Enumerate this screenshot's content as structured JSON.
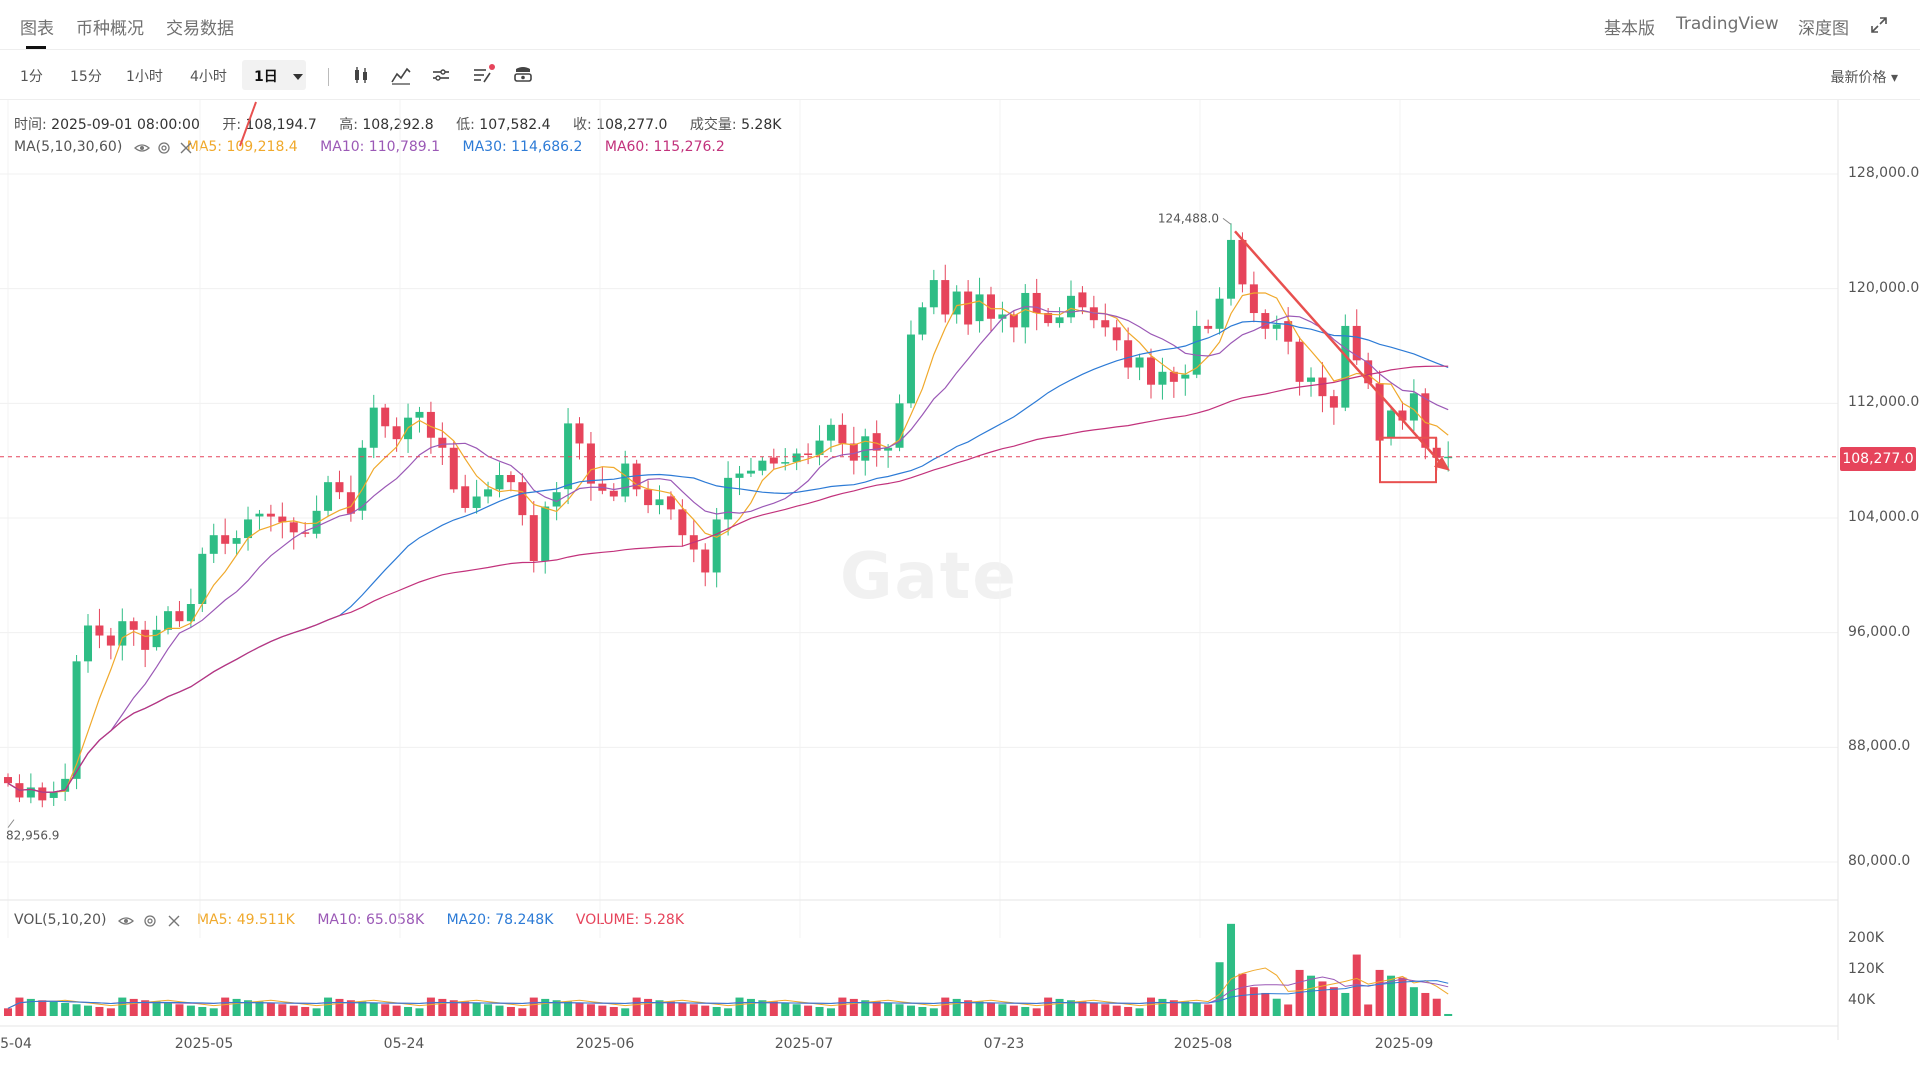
{
  "tabs": [
    {
      "label": "图表",
      "active": true
    },
    {
      "label": "币种概况",
      "active": false
    },
    {
      "label": "交易数据",
      "active": false
    }
  ],
  "right_tabs": [
    {
      "label": "基本版",
      "active": true
    },
    {
      "label": "TradingView",
      "active": false
    },
    {
      "label": "深度图",
      "active": false
    }
  ],
  "intervals": [
    "1分",
    "15分",
    "1小时",
    "4小时",
    "1日"
  ],
  "active_interval": "1日",
  "price_type": "最新价格",
  "ohlc": {
    "time_label": "时间:",
    "time": "2025-09-01 08:00:00",
    "open_label": "开:",
    "open": "108,194.7",
    "high_label": "高:",
    "high": "108,292.8",
    "low_label": "低:",
    "low": "107,582.4",
    "close_label": "收:",
    "close": "108,277.0",
    "volume_label": "成交量:",
    "volume": "5.28K"
  },
  "ma": {
    "label": "MA(5,10,30,60)",
    "ma5": "MA5: 109,218.4",
    "ma10": "MA10: 110,789.1",
    "ma30": "MA30: 114,686.2",
    "ma60": "MA60: 115,276.2"
  },
  "vol": {
    "label": "VOL(5,10,20)",
    "ma5": "MA5: 49.511K",
    "ma10": "MA10: 65.058K",
    "ma20": "MA20: 78.248K",
    "volume": "VOLUME: 5.28K"
  },
  "colors": {
    "up": "#2ebd85",
    "down": "#e6445b",
    "ma5": "#f0a92c",
    "ma10": "#9b59b6",
    "ma30": "#2d7bd6",
    "ma60": "#c2327c"
  },
  "price_axis": [
    "128,000.0",
    "120,000.0",
    "112,000.0",
    "104,000.0",
    "96,000.0",
    "88,000.0",
    "80,000.0"
  ],
  "last_price": "108,277.0",
  "vol_axis": [
    "200K",
    "120K",
    "40K"
  ],
  "date_axis": [
    "5-04",
    "2025-05",
    "05-24",
    "2025-06",
    "2025-07",
    "07-23",
    "2025-08",
    "2025-09"
  ],
  "high_annotation": "124,488.0",
  "low_annotation": "82,956.9",
  "watermark": "Gate",
  "chart_data": {
    "type": "candlestick",
    "title": "",
    "interval": "1日",
    "y_range": [
      78000,
      132000
    ],
    "closes": [
      85500,
      84500,
      85200,
      84300,
      84900,
      85800,
      94000,
      96500,
      95800,
      95100,
      96800,
      96200,
      94800,
      96200,
      97500,
      96800,
      98000,
      101500,
      102800,
      102200,
      102600,
      103900,
      104300,
      104100,
      103700,
      103000,
      102900,
      104500,
      106500,
      105800,
      104300,
      108900,
      111700,
      110400,
      109500,
      111000,
      111400,
      109600,
      108900,
      106000,
      104700,
      105500,
      106000,
      107000,
      106500,
      104200,
      101000,
      104800,
      105800,
      110600,
      109200,
      106400,
      105900,
      105500,
      107800,
      106000,
      104900,
      105300,
      104600,
      102800,
      101800,
      100200,
      103900,
      106800,
      107100,
      107300,
      108000,
      107800,
      107900,
      108500,
      108400,
      109400,
      110500,
      109200,
      108000,
      109700,
      108700,
      108900,
      112000,
      116800,
      118700,
      120600,
      118200,
      119800,
      117500,
      119600,
      117900,
      118200,
      117300,
      119700,
      118300,
      117600,
      118000,
      119500,
      118700,
      117800,
      117300,
      116400,
      114500,
      115200,
      113300,
      114200,
      113500,
      114000,
      117400,
      117200,
      119300,
      123400,
      120300,
      118300,
      117200,
      117500,
      116300,
      113500,
      113800,
      112500,
      111700,
      117400,
      115000,
      113400,
      109400,
      111500,
      110800,
      112700,
      108900,
      108200,
      108277
    ],
    "annotations": {
      "high": 124488.0,
      "low": 82956.9,
      "last": 108277.0
    }
  }
}
